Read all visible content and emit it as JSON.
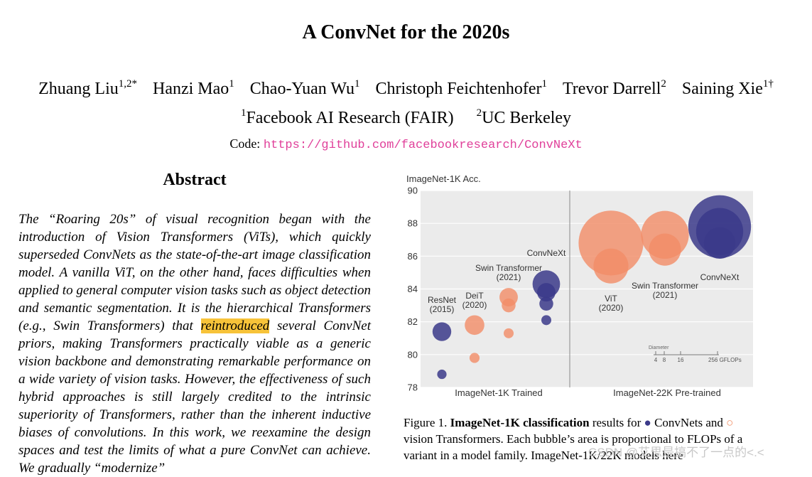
{
  "paper": {
    "title": "A ConvNet for the 2020s",
    "authors": [
      {
        "name": "Zhuang Liu",
        "sup": "1,2*"
      },
      {
        "name": "Hanzi Mao",
        "sup": "1"
      },
      {
        "name": "Chao-Yuan Wu",
        "sup": "1"
      },
      {
        "name": "Christoph Feichtenhofer",
        "sup": "1"
      },
      {
        "name": "Trevor Darrell",
        "sup": "2"
      },
      {
        "name": "Saining Xie",
        "sup": "1†"
      }
    ],
    "affiliations": [
      {
        "sup": "1",
        "name": "Facebook AI Research (FAIR)"
      },
      {
        "sup": "2",
        "name": "UC Berkeley"
      }
    ],
    "code_label": "Code:",
    "code_url": "https://github.com/facebookresearch/ConvNeXt"
  },
  "abstract": {
    "heading": "Abstract",
    "text_before": "The “Roaring 20s” of visual recognition began with the introduction of Vision Transformers (ViTs), which quickly superseded ConvNets as the state-of-the-art image classification model. A vanilla ViT, on the other hand, faces difficulties when applied to general computer vision tasks such as object detection and semantic segmentation. It is the hierarchical Transformers (e.g., Swin Transformers) that ",
    "highlight": "reintroduced",
    "text_after": " several ConvNet priors, making Transformers practically viable as a generic vision backbone and demonstrating remarkable performance on a wide variety of vision tasks. However, the effectiveness of such hybrid approaches is still largely credited to the intrinsic superiority of Transformers, rather than the inherent inductive biases of convolutions. In this work, we reexamine the design spaces and test the limits of what a pure ConvNet can achieve. We gradually “modernize”"
  },
  "chart_data": {
    "type": "scatter",
    "ylabel": "ImageNet-1K Acc.",
    "ylim": [
      78,
      90
    ],
    "yticks": [
      78,
      80,
      82,
      84,
      86,
      88,
      90
    ],
    "panels": [
      "ImageNet-1K Trained",
      "ImageNet-22K Pre-trained"
    ],
    "colors": {
      "convnet": "#3b3a8a",
      "transformer": "#f28c66"
    },
    "groups": [
      {
        "label": [
          "ResNet",
          "(2015)"
        ],
        "panel": 0,
        "kind": "convnet",
        "points": [
          {
            "acc": 78.8,
            "gflops": 4
          },
          {
            "acc": 81.4,
            "gflops": 16
          }
        ]
      },
      {
        "label": [
          "DeiT",
          "(2020)"
        ],
        "panel": 0,
        "kind": "transformer",
        "points": [
          {
            "acc": 79.8,
            "gflops": 4.6
          },
          {
            "acc": 81.8,
            "gflops": 17.5
          }
        ]
      },
      {
        "label": [
          "Swin Transformer",
          "(2021)"
        ],
        "panel": 0,
        "kind": "transformer",
        "points": [
          {
            "acc": 81.3,
            "gflops": 4.5
          },
          {
            "acc": 83.0,
            "gflops": 8.7
          },
          {
            "acc": 83.5,
            "gflops": 15.4
          }
        ]
      },
      {
        "label": [
          "ConvNeXt"
        ],
        "panel": 0,
        "kind": "convnet",
        "points": [
          {
            "acc": 82.1,
            "gflops": 4.5
          },
          {
            "acc": 83.1,
            "gflops": 8.7
          },
          {
            "acc": 83.8,
            "gflops": 15.4
          },
          {
            "acc": 84.3,
            "gflops": 34.4
          }
        ]
      },
      {
        "label": [
          "ViT",
          "(2020)"
        ],
        "panel": 1,
        "kind": "transformer",
        "points": [
          {
            "acc": 85.4,
            "gflops": 55.5
          },
          {
            "acc": 86.8,
            "gflops": 190.7
          }
        ]
      },
      {
        "label": [
          "Swin Transformer",
          "(2021)"
        ],
        "panel": 1,
        "kind": "transformer",
        "points": [
          {
            "acc": 86.4,
            "gflops": 47
          },
          {
            "acc": 87.3,
            "gflops": 104
          }
        ]
      },
      {
        "label": [
          "ConvNeXt"
        ],
        "panel": 1,
        "kind": "convnet",
        "points": [
          {
            "acc": 86.8,
            "gflops": 45
          },
          {
            "acc": 87.5,
            "gflops": 101
          },
          {
            "acc": 87.8,
            "gflops": 179
          }
        ]
      }
    ],
    "size_legend": {
      "title": "Diameter",
      "ticks": [
        "4",
        "8",
        "16",
        "256 GFLOPs"
      ]
    },
    "grid": true
  },
  "figure": {
    "caption_prefix": "Figure 1.",
    "caption_bold": "ImageNet-1K classification",
    "caption_mid": " results for ",
    "convnet_glyph": "●",
    "convnet_label": "ConvNets and",
    "transformer_glyph": "○",
    "caption_rest": " vision Transformers. Each bubble’s area is proportional to FLOPs of a variant in a model family. ImageNet-1K/22K models here"
  },
  "watermark": "CSDN @艾思是搞不了一点的<.<"
}
